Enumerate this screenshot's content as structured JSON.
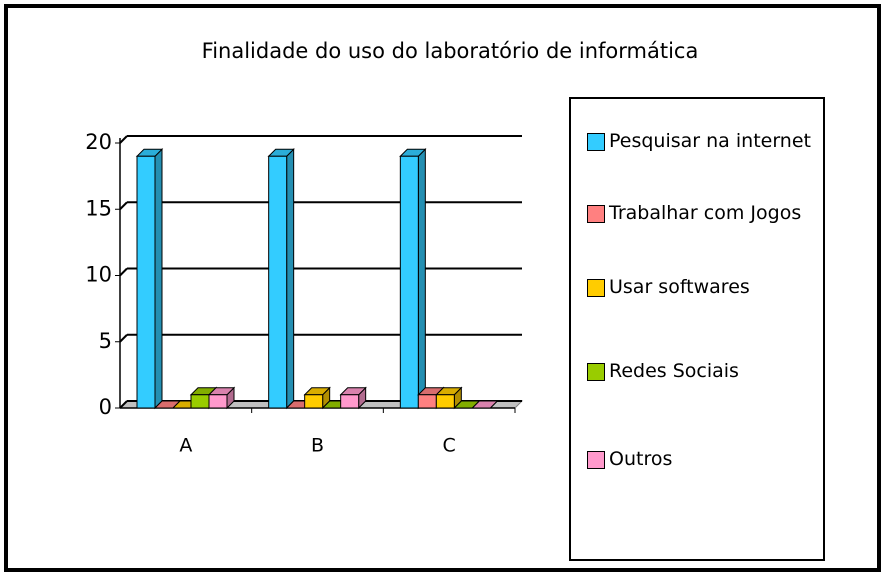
{
  "chart_data": {
    "type": "bar",
    "title": "Finalidade do uso do laboratório de informática",
    "categories": [
      "A",
      "B",
      "C"
    ],
    "series": [
      {
        "name": "Pesquisar na internet",
        "color": "#33ccff",
        "values": [
          19,
          19,
          19
        ]
      },
      {
        "name": "Trabalhar com Jogos",
        "color": "#ff8080",
        "values": [
          0,
          0,
          1
        ]
      },
      {
        "name": "Usar softwares",
        "color": "#ffcc00",
        "values": [
          0,
          1,
          1
        ]
      },
      {
        "name": "Redes Sociais",
        "color": "#99cc00",
        "values": [
          1,
          0,
          0
        ]
      },
      {
        "name": "Outros",
        "color": "#ff99cc",
        "values": [
          1,
          1,
          0
        ]
      }
    ],
    "ylim": [
      0,
      20
    ],
    "yticks": [
      0,
      5,
      10,
      15,
      20
    ],
    "grid": true,
    "legend": "right"
  }
}
